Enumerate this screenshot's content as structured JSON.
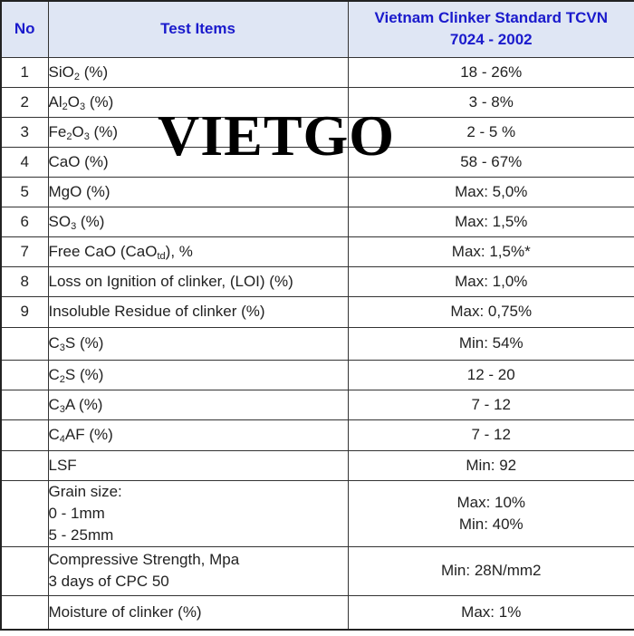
{
  "headers": {
    "no": "No",
    "items": "Test Items",
    "standard_line1": "Vietnam Clinker Standard TCVN",
    "standard_line2": "7024 - 2002"
  },
  "watermark": "VIETGO",
  "rows": [
    {
      "no": "1",
      "item_parts": [
        {
          "t": "SiO"
        },
        {
          "sub": "2"
        },
        {
          "t": " (%)"
        }
      ],
      "value": "18 - 26%"
    },
    {
      "no": "2",
      "item_parts": [
        {
          "t": "Al"
        },
        {
          "sub": "2"
        },
        {
          "t": "O"
        },
        {
          "sub": "3"
        },
        {
          "t": " (%)"
        }
      ],
      "value": "3 - 8%"
    },
    {
      "no": "3",
      "item_parts": [
        {
          "t": "Fe"
        },
        {
          "sub": "2"
        },
        {
          "t": "O"
        },
        {
          "sub": "3"
        },
        {
          "t": " (%)"
        }
      ],
      "value": "2 - 5 %"
    },
    {
      "no": "4",
      "item_parts": [
        {
          "t": "CaO (%)"
        }
      ],
      "value": "58 -  67%"
    },
    {
      "no": "5",
      "item_parts": [
        {
          "t": "MgO (%)"
        }
      ],
      "value": "Max: 5,0%"
    },
    {
      "no": "6",
      "item_parts": [
        {
          "t": "SO"
        },
        {
          "sub": "3"
        },
        {
          "t": " (%)"
        }
      ],
      "value": "Max: 1,5%"
    },
    {
      "no": "7",
      "item_parts": [
        {
          "t": "Free CaO (CaO"
        },
        {
          "sub": "td"
        },
        {
          "t": "), %"
        }
      ],
      "value": "Max: 1,5%*"
    },
    {
      "no": "8",
      "item_parts": [
        {
          "t": "Loss on Ignition of clinker, (LOI)  (%)"
        }
      ],
      "value": "Max: 1,0%"
    },
    {
      "no": "9",
      "item_parts": [
        {
          "t": "Insoluble Residue of clinker (%)"
        }
      ],
      "value": "Max: 0,75%"
    },
    {
      "no": "",
      "item_parts": [
        {
          "t": "C"
        },
        {
          "sub": "3"
        },
        {
          "t": "S (%)"
        }
      ],
      "value": "Min: 54%"
    },
    {
      "no": "",
      "item_parts": [
        {
          "t": "C"
        },
        {
          "sub": "2"
        },
        {
          "t": "S (%)"
        }
      ],
      "value": "12 - 20"
    },
    {
      "no": "",
      "item_parts": [
        {
          "t": "C"
        },
        {
          "sub": "3"
        },
        {
          "t": "A (%)"
        }
      ],
      "value": "7 - 12"
    },
    {
      "no": "",
      "item_parts": [
        {
          "t": "C"
        },
        {
          "sub": "4"
        },
        {
          "t": "AF (%)"
        }
      ],
      "value": "7 - 12"
    },
    {
      "no": "",
      "item_parts": [
        {
          "t": "LSF"
        }
      ],
      "value": "Min: 92"
    }
  ],
  "grain": {
    "lines": [
      "Grain size:",
      "0 - 1mm",
      "5 - 25mm"
    ],
    "values": [
      "Max: 10%",
      "Min: 40%"
    ]
  },
  "compressive": {
    "lines": [
      "Compressive Strength, Mpa",
      "3 days of CPC 50"
    ],
    "value": "Min: 28N/mm2"
  },
  "moisture": {
    "item": "Moisture of clinker (%)",
    "value": "Max: 1%"
  }
}
